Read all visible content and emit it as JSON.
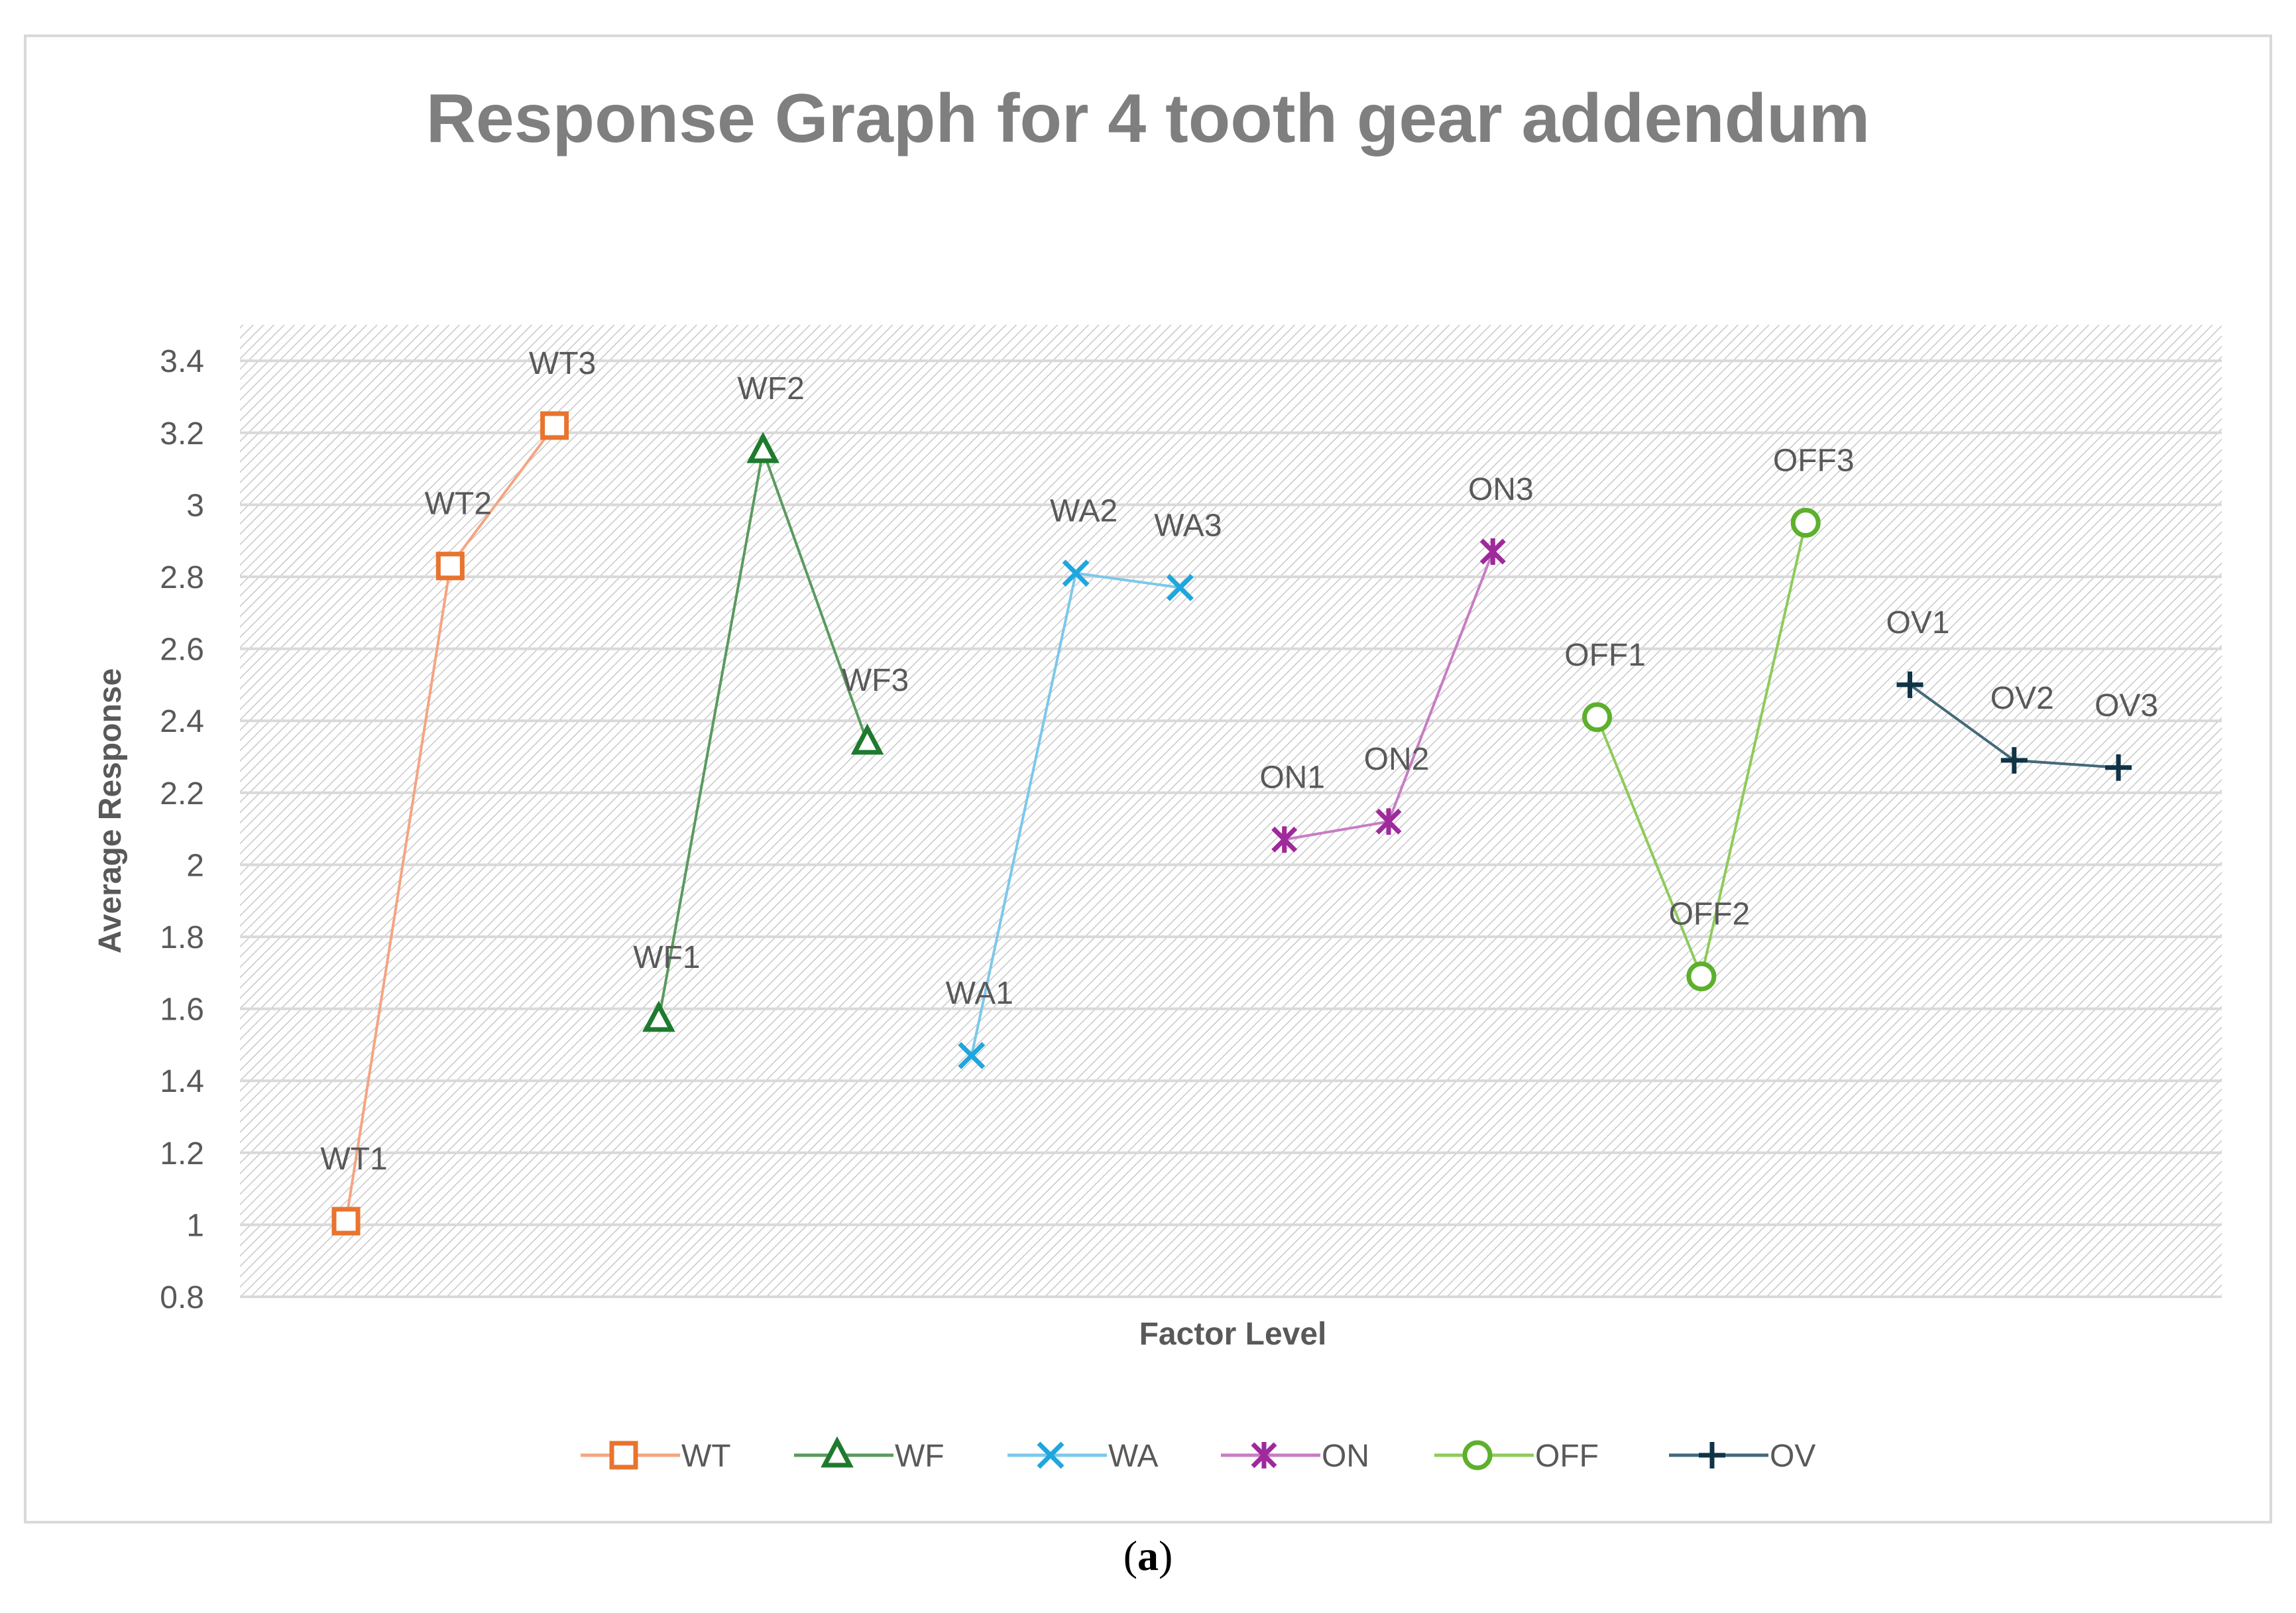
{
  "chart_data": {
    "type": "line",
    "title": "Response Graph for 4 tooth gear addendum",
    "xlabel": "Factor Level",
    "ylabel": "Average Response",
    "ylim": [
      0.8,
      3.4
    ],
    "ytick_step": 0.2,
    "yticks": [
      "0.8",
      "1",
      "1.2",
      "1.4",
      "1.6",
      "1.8",
      "2",
      "2.2",
      "2.4",
      "2.6",
      "2.8",
      "3",
      "3.2",
      "3.4"
    ],
    "grid": true,
    "legend_position": "bottom",
    "series": [
      {
        "name": "WT",
        "color": "#F4A582",
        "marker_color": "#E8742E",
        "marker": "square",
        "points": [
          {
            "label": "WT1",
            "x": 1,
            "y": 1.01
          },
          {
            "label": "WT2",
            "x": 2,
            "y": 2.83
          },
          {
            "label": "WT3",
            "x": 3,
            "y": 3.22
          }
        ]
      },
      {
        "name": "WF",
        "color": "#5A9A5E",
        "marker_color": "#1E7A2E",
        "marker": "triangle",
        "points": [
          {
            "label": "WF1",
            "x": 4,
            "y": 1.57
          },
          {
            "label": "WF2",
            "x": 5,
            "y": 3.15
          },
          {
            "label": "WF3",
            "x": 6,
            "y": 2.34
          }
        ]
      },
      {
        "name": "WA",
        "color": "#7CC8EA",
        "marker_color": "#1FA6DD",
        "marker": "x",
        "points": [
          {
            "label": "WA1",
            "x": 7,
            "y": 1.47
          },
          {
            "label": "WA2",
            "x": 8,
            "y": 2.81
          },
          {
            "label": "WA3",
            "x": 9,
            "y": 2.77
          }
        ]
      },
      {
        "name": "ON",
        "color": "#C77DC4",
        "marker_color": "#9E2A9B",
        "marker": "asterisk",
        "points": [
          {
            "label": "ON1",
            "x": 10,
            "y": 2.07
          },
          {
            "label": "ON2",
            "x": 11,
            "y": 2.12
          },
          {
            "label": "ON3",
            "x": 12,
            "y": 2.87
          }
        ]
      },
      {
        "name": "OFF",
        "color": "#8DCB5A",
        "marker_color": "#5DB02C",
        "marker": "circle",
        "points": [
          {
            "label": "OFF1",
            "x": 13,
            "y": 2.41
          },
          {
            "label": "OFF2",
            "x": 14,
            "y": 1.69
          },
          {
            "label": "OFF3",
            "x": 15,
            "y": 2.95
          }
        ]
      },
      {
        "name": "OV",
        "color": "#44697A",
        "marker_color": "#0F3446",
        "marker": "plus",
        "points": [
          {
            "label": "OV1",
            "x": 16,
            "y": 2.5
          },
          {
            "label": "OV2",
            "x": 17,
            "y": 2.29
          },
          {
            "label": "OV3",
            "x": 18,
            "y": 2.27
          }
        ]
      }
    ]
  },
  "caption": {
    "open": "(",
    "letter": "a",
    "close": ")"
  }
}
